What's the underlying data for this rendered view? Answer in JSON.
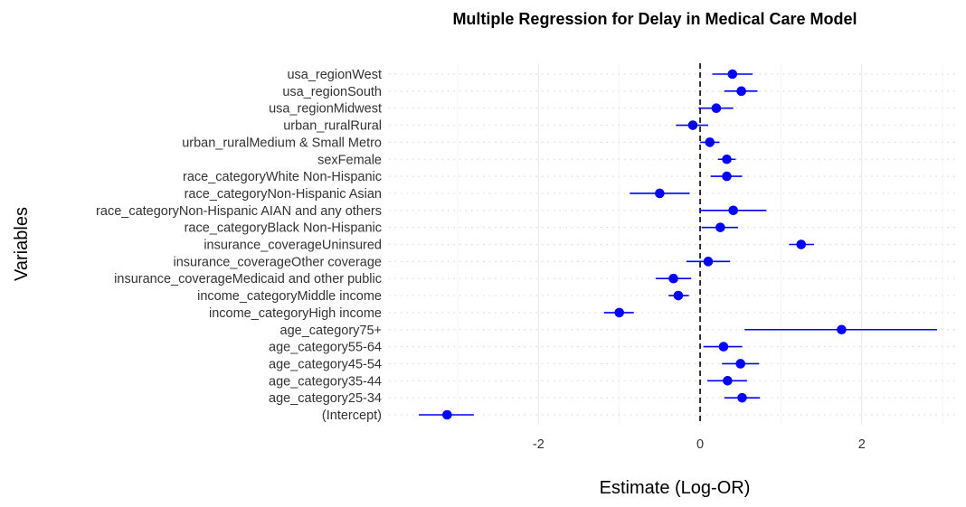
{
  "chart_data": {
    "type": "scatter",
    "subtype": "coefficient-forest-plot",
    "title": "Multiple Regression for Delay in Medical Care Model",
    "xlabel": "Estimate (Log-OR)",
    "ylabel": "Variables",
    "xlim": [
      -3.85,
      3.2
    ],
    "x_ticks": [
      -2,
      0,
      2
    ],
    "reference_line": 0,
    "grid": "on",
    "point_color": "#0000ff",
    "line_color": "#0000ff",
    "categories": [
      "(Intercept)",
      "age_category25-34",
      "age_category35-44",
      "age_category45-54",
      "age_category55-64",
      "age_category75+",
      "income_categoryHigh income",
      "income_categoryMiddle income",
      "insurance_coverageMedicaid and other public",
      "insurance_coverageOther coverage",
      "insurance_coverageUninsured",
      "race_categoryBlack Non-Hispanic",
      "race_categoryNon-Hispanic AIAN and any others",
      "race_categoryNon-Hispanic Asian",
      "race_categoryWhite Non-Hispanic",
      "sexFemale",
      "urban_ruralMedium & Small Metro",
      "urban_ruralRural",
      "usa_regionMidwest",
      "usa_regionSouth",
      "usa_regionWest"
    ],
    "estimates": [
      -3.13,
      0.52,
      0.34,
      0.5,
      0.29,
      1.75,
      -1.0,
      -0.27,
      -0.33,
      0.1,
      1.25,
      0.25,
      0.41,
      -0.5,
      0.33,
      0.33,
      0.12,
      -0.09,
      0.2,
      0.51,
      0.4
    ],
    "lower": [
      -3.48,
      0.3,
      0.09,
      0.27,
      0.04,
      0.55,
      -1.19,
      -0.39,
      -0.55,
      -0.17,
      1.1,
      0.02,
      0.0,
      -0.87,
      0.13,
      0.22,
      0.0,
      -0.3,
      -0.02,
      0.3,
      0.15
    ],
    "upper": [
      -2.8,
      0.74,
      0.58,
      0.73,
      0.52,
      2.93,
      -0.82,
      -0.14,
      -0.11,
      0.37,
      1.41,
      0.47,
      0.82,
      -0.13,
      0.52,
      0.44,
      0.24,
      0.1,
      0.41,
      0.71,
      0.65
    ]
  }
}
